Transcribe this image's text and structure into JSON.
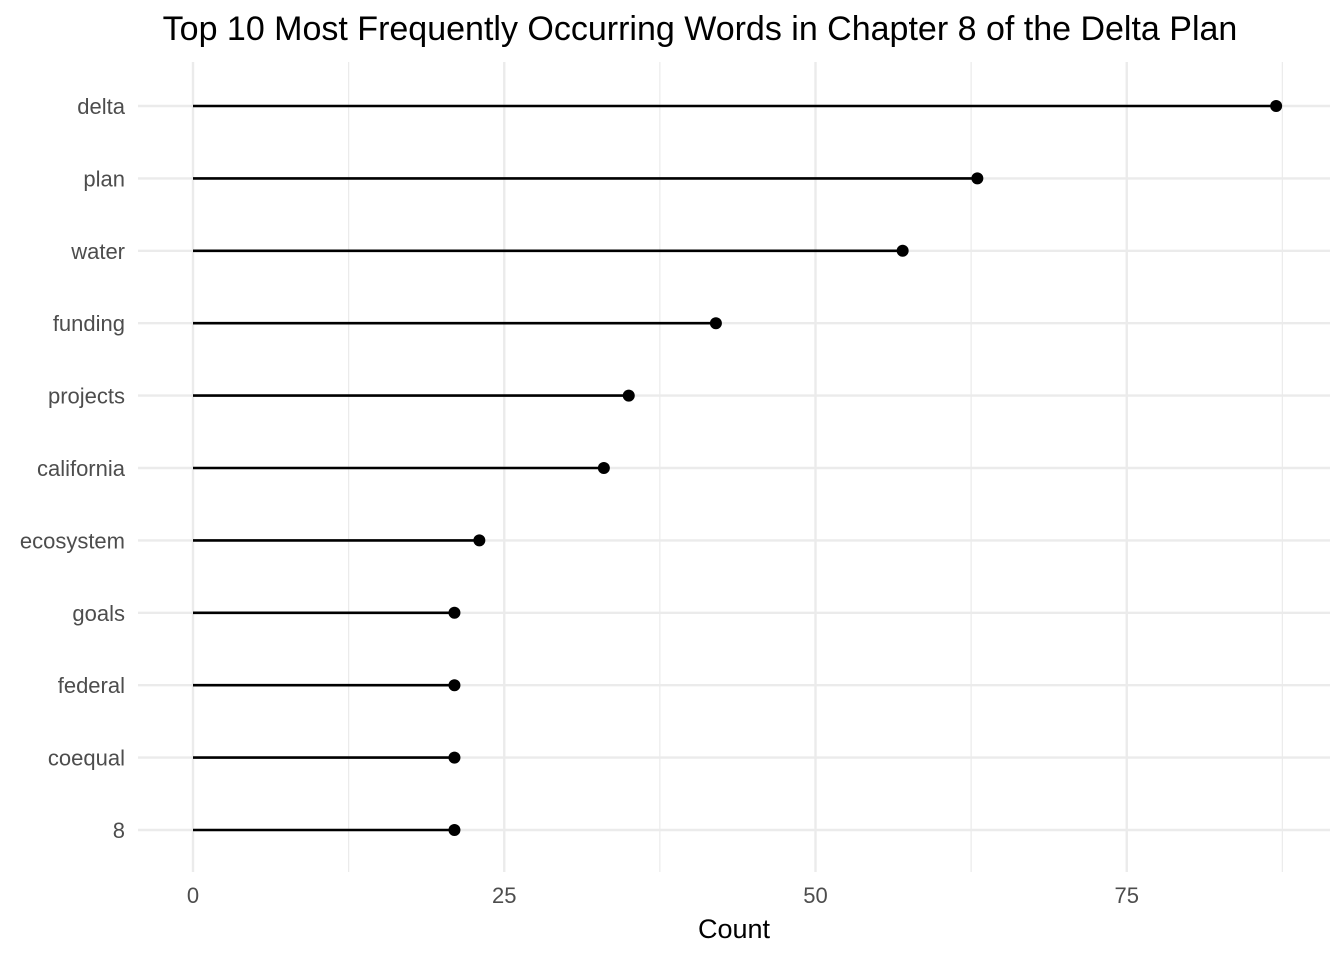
{
  "chart_data": {
    "type": "lollipop",
    "title": "Top 10 Most Frequently Occurring Words in Chapter 8 of the Delta Plan",
    "xlabel": "Count",
    "ylabel": "",
    "xlim": [
      -4.4,
      91
    ],
    "x_ticks": [
      0,
      25,
      50,
      75
    ],
    "x_minor_ticks": [
      12.5,
      37.5,
      62.5,
      87.5
    ],
    "grid": true,
    "orientation": "horizontal",
    "categories": [
      "delta",
      "plan",
      "water",
      "funding",
      "projects",
      "california",
      "ecosystem",
      "goals",
      "federal",
      "coequal",
      "8"
    ],
    "values": [
      87,
      63,
      57,
      42,
      35,
      33,
      23,
      21,
      21,
      21,
      21
    ],
    "colors": {
      "mark": "#000000",
      "grid": "#ebebeb",
      "label": "#4d4d4d"
    }
  }
}
